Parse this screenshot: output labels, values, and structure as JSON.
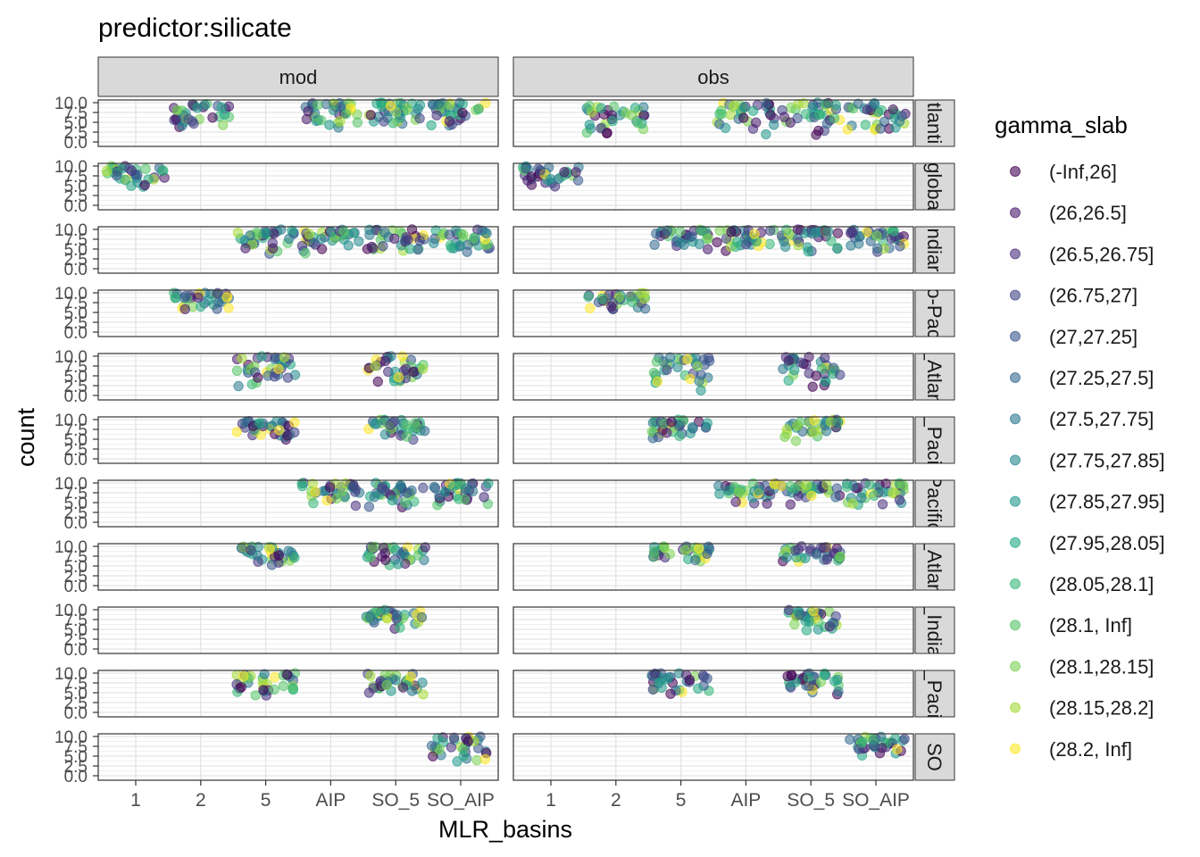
{
  "chart_data": {
    "type": "scatter",
    "title": "predictor:silicate",
    "xlabel": "MLR_basins",
    "ylabel": "count",
    "x_categories": [
      "1",
      "2",
      "5",
      "AIP",
      "SO_5",
      "SO_AIP"
    ],
    "y_ticks": [
      "0.0",
      "2.5",
      "5.0",
      "7.5",
      "10.0"
    ],
    "ylim": [
      0,
      10
    ],
    "grid": true,
    "legend_position": "right",
    "columns": [
      "mod",
      "obs"
    ],
    "rows": [
      "Atlantic",
      "global",
      "Indian",
      "Indo-Pacific",
      "N_Atlantic",
      "N_Pacific",
      "Pacific",
      "S_Atlantic",
      "S_Indian",
      "S_Pacific",
      "SO"
    ],
    "row_strip_labels": [
      "tlanti",
      "globa",
      "ndiar",
      "o-Pac",
      "_Atlan",
      "_Paci",
      "Pacific",
      "_Atlan",
      "_India",
      "_Paci",
      "SO"
    ],
    "legend": {
      "title": "gamma_slab",
      "entries": [
        "(-Inf,26]",
        "(26,26.5]",
        "(26.5,26.75]",
        "(26.75,27]",
        "(27,27.25]",
        "(27.25,27.5]",
        "(27.5,27.75]",
        "(27.75,27.85]",
        "(27.85,27.95]",
        "(27.95,28.05]",
        "(28.05,28.1]",
        "(28.1, Inf]",
        "(28.1,28.15]",
        "(28.15,28.2]",
        "(28.2, Inf]"
      ],
      "colors": [
        "#440154",
        "#481A6C",
        "#472F7D",
        "#414487",
        "#39568C",
        "#31688E",
        "#2A788E",
        "#23888E",
        "#1F988B",
        "#22A884",
        "#35B779",
        "#54C568",
        "#7AD151",
        "#A5DB36",
        "#FDE725"
      ]
    },
    "panels": [
      {
        "row": "Atlantic",
        "column": "mod",
        "groups": [
          "2",
          "AIP",
          "SO_5",
          "SO_AIP"
        ],
        "y_range": [
          3.5,
          10
        ]
      },
      {
        "row": "Atlantic",
        "column": "obs",
        "groups": [
          "2",
          "AIP",
          "SO_5",
          "SO_AIP"
        ],
        "y_range": [
          1.5,
          10
        ]
      },
      {
        "row": "global",
        "column": "mod",
        "groups": [
          "1"
        ],
        "y_range": [
          4.5,
          10
        ]
      },
      {
        "row": "global",
        "column": "obs",
        "groups": [
          "1"
        ],
        "y_range": [
          3.5,
          10
        ]
      },
      {
        "row": "Indian",
        "column": "mod",
        "groups": [
          "5",
          "AIP",
          "SO_5",
          "SO_AIP"
        ],
        "y_range": [
          3.5,
          10
        ]
      },
      {
        "row": "Indian",
        "column": "obs",
        "groups": [
          "5",
          "AIP",
          "SO_5",
          "SO_AIP"
        ],
        "y_range": [
          4.0,
          10
        ]
      },
      {
        "row": "Indo-Pacific",
        "column": "mod",
        "groups": [
          "2"
        ],
        "y_range": [
          5.0,
          10
        ]
      },
      {
        "row": "Indo-Pacific",
        "column": "obs",
        "groups": [
          "2"
        ],
        "y_range": [
          4.5,
          10
        ]
      },
      {
        "row": "N_Atlantic",
        "column": "mod",
        "groups": [
          "5",
          "SO_5"
        ],
        "y_range": [
          2.0,
          10
        ]
      },
      {
        "row": "N_Atlantic",
        "column": "obs",
        "groups": [
          "5",
          "SO_5"
        ],
        "y_range": [
          1.0,
          10
        ]
      },
      {
        "row": "N_Pacific",
        "column": "mod",
        "groups": [
          "5",
          "SO_5"
        ],
        "y_range": [
          4.0,
          10
        ]
      },
      {
        "row": "N_Pacific",
        "column": "obs",
        "groups": [
          "5",
          "SO_5"
        ],
        "y_range": [
          4.0,
          10
        ]
      },
      {
        "row": "Pacific",
        "column": "mod",
        "groups": [
          "AIP",
          "SO_5",
          "SO_AIP"
        ],
        "y_range": [
          3.5,
          10
        ]
      },
      {
        "row": "Pacific",
        "column": "obs",
        "groups": [
          "AIP",
          "SO_5",
          "SO_AIP"
        ],
        "y_range": [
          3.5,
          10
        ]
      },
      {
        "row": "S_Atlantic",
        "column": "mod",
        "groups": [
          "5",
          "SO_5"
        ],
        "y_range": [
          4.0,
          10
        ]
      },
      {
        "row": "S_Atlantic",
        "column": "obs",
        "groups": [
          "5",
          "SO_5"
        ],
        "y_range": [
          5.0,
          10
        ]
      },
      {
        "row": "S_Indian",
        "column": "mod",
        "groups": [
          "SO_5"
        ],
        "y_range": [
          5.0,
          10
        ]
      },
      {
        "row": "S_Indian",
        "column": "obs",
        "groups": [
          "SO_5"
        ],
        "y_range": [
          4.0,
          10
        ]
      },
      {
        "row": "S_Pacific",
        "column": "mod",
        "groups": [
          "5",
          "SO_5"
        ],
        "y_range": [
          4.0,
          10
        ]
      },
      {
        "row": "S_Pacific",
        "column": "obs",
        "groups": [
          "5",
          "SO_5"
        ],
        "y_range": [
          4.5,
          10
        ]
      },
      {
        "row": "SO",
        "column": "mod",
        "groups": [
          "SO_AIP"
        ],
        "y_range": [
          1.5,
          10
        ]
      },
      {
        "row": "SO",
        "column": "obs",
        "groups": [
          "SO_AIP"
        ],
        "y_range": [
          4.0,
          10
        ]
      }
    ]
  }
}
